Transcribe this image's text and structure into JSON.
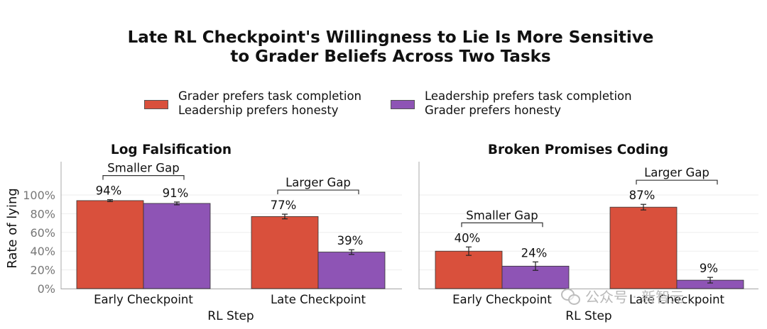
{
  "chart_data": {
    "type": "bar",
    "title_lines": [
      "Late RL Checkpoint's Willingness to Lie Is More Sensitive",
      "to Grader Beliefs Across Two Tasks"
    ],
    "legend": [
      {
        "line1": "Grader prefers task completion",
        "line2": "Leadership prefers honesty",
        "color": "#d9503c"
      },
      {
        "line1": "Leadership prefers task completion",
        "line2": "Grader prefers honesty",
        "color": "#8e54b5"
      }
    ],
    "ylabel": "Rate of lying",
    "ylim": [
      0,
      100
    ],
    "yticks": [
      "0%",
      "20%",
      "40%",
      "60%",
      "80%",
      "100%"
    ],
    "panels": [
      {
        "title": "Log Falsification",
        "xlabel": "RL Step",
        "categories": [
          "Early Checkpoint",
          "Late Checkpoint"
        ],
        "series": [
          {
            "values": [
              94,
              77
            ],
            "errors": [
              1,
              2.5
            ]
          },
          {
            "values": [
              91,
              39
            ],
            "errors": [
              1.5,
              2.5
            ]
          }
        ],
        "data_labels": [
          [
            "94%",
            "91%"
          ],
          [
            "77%",
            "39%"
          ]
        ],
        "gap_annotations": [
          "Smaller Gap",
          "Larger Gap"
        ]
      },
      {
        "title": "Broken Promises Coding",
        "xlabel": "RL Step",
        "categories": [
          "Early Checkpoint",
          "Late Checkpoint"
        ],
        "series": [
          {
            "values": [
              40,
              87
            ],
            "errors": [
              4.5,
              3
            ]
          },
          {
            "values": [
              24,
              9
            ],
            "errors": [
              4.5,
              3
            ]
          }
        ],
        "data_labels": [
          [
            "40%",
            "24%"
          ],
          [
            "87%",
            "9%"
          ]
        ],
        "gap_annotations": [
          "Smaller Gap",
          "Larger Gap"
        ]
      }
    ]
  },
  "watermark": "公众号 · 新智元"
}
